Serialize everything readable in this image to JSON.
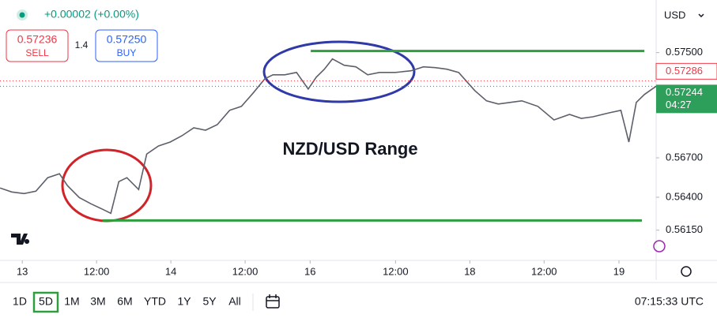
{
  "header": {
    "change": "+0.00002 (+0.00%)",
    "sell_price": "0.57236",
    "sell_label": "SELL",
    "spread": "1.4",
    "buy_price": "0.57250",
    "buy_label": "BUY",
    "currency": "USD"
  },
  "chart_data": {
    "type": "line",
    "annotation": "NZD/USD Range",
    "color": "#5d606b",
    "x": [
      -3.6,
      -1.7,
      0.3,
      2.2,
      4.1,
      6.0,
      7.3,
      9.2,
      11.1,
      13.0,
      14.3,
      15.6,
      16.9,
      18.8,
      20.1,
      22.0,
      23.9,
      25.8,
      27.7,
      29.6,
      31.5,
      33.5,
      35.4,
      37.3,
      39.2,
      40.5,
      42.4,
      44.3,
      46.2,
      47.5,
      48.8,
      50.1,
      52.0,
      53.9,
      55.8,
      57.7,
      60.3,
      62.8,
      64.8,
      66.7,
      68.6,
      70.5,
      73.1,
      75.0,
      76.9,
      78.8,
      80.7,
      83.3,
      85.9,
      88.4,
      90.3,
      92.2,
      94.8,
      96.7,
      98.0,
      99.2,
      100.5,
      102.4
    ],
    "values": [
      0.56471,
      0.5644,
      0.56428,
      0.56446,
      0.56549,
      0.56579,
      0.56489,
      0.56398,
      0.5635,
      0.56308,
      0.56278,
      0.56519,
      0.56549,
      0.56459,
      0.56729,
      0.5679,
      0.5682,
      0.56868,
      0.56928,
      0.5691,
      0.56952,
      0.57061,
      0.57091,
      0.57193,
      0.57301,
      0.57331,
      0.57331,
      0.57349,
      0.57223,
      0.57313,
      0.57374,
      0.57452,
      0.57404,
      0.57392,
      0.57331,
      0.57349,
      0.57349,
      0.57362,
      0.57392,
      0.57386,
      0.57374,
      0.57349,
      0.57211,
      0.57133,
      0.57109,
      0.57121,
      0.57133,
      0.57091,
      0.56988,
      0.5703,
      0.57,
      0.57012,
      0.57042,
      0.57061,
      0.5682,
      0.57121,
      0.57181,
      0.57244
    ],
    "xlim": [
      -3.6,
      102.4
    ],
    "xticks": [
      {
        "value": 0,
        "label": "13"
      },
      {
        "value": 12,
        "label": "12:00"
      },
      {
        "value": 24,
        "label": "14"
      },
      {
        "value": 36,
        "label": "12:00"
      },
      {
        "value": 46.5,
        "label": "16"
      },
      {
        "value": 60.3,
        "label": "12:00"
      },
      {
        "value": 72.3,
        "label": "18"
      },
      {
        "value": 84.3,
        "label": "12:00"
      },
      {
        "value": 96.4,
        "label": "19"
      }
    ],
    "ylim": [
      0.5592,
      0.579
    ],
    "yticks": [
      {
        "value": 0.5615,
        "label": "0.56150"
      },
      {
        "value": 0.564,
        "label": "0.56400"
      },
      {
        "value": 0.567,
        "label": "0.56700"
      },
      {
        "value": 0.575,
        "label": "0.57500"
      }
    ],
    "levels": [
      {
        "value": 0.57512,
        "from": 46.6,
        "to": 100.5,
        "color": "#2e9e3e"
      },
      {
        "value": 0.56224,
        "from": 13.0,
        "to": 100.1,
        "color": "#2e9e3e"
      }
    ],
    "price_tags": [
      {
        "value": 0.57286,
        "label": "0.57286"
      },
      {
        "value": 0.57244,
        "label": "0.57244",
        "countdown": "04:27"
      }
    ]
  },
  "toolbar": {
    "ranges": [
      "1D",
      "5D",
      "1M",
      "3M",
      "6M",
      "YTD",
      "1Y",
      "5Y",
      "All"
    ],
    "selected": 1,
    "time": "07:15:33 UTC"
  }
}
